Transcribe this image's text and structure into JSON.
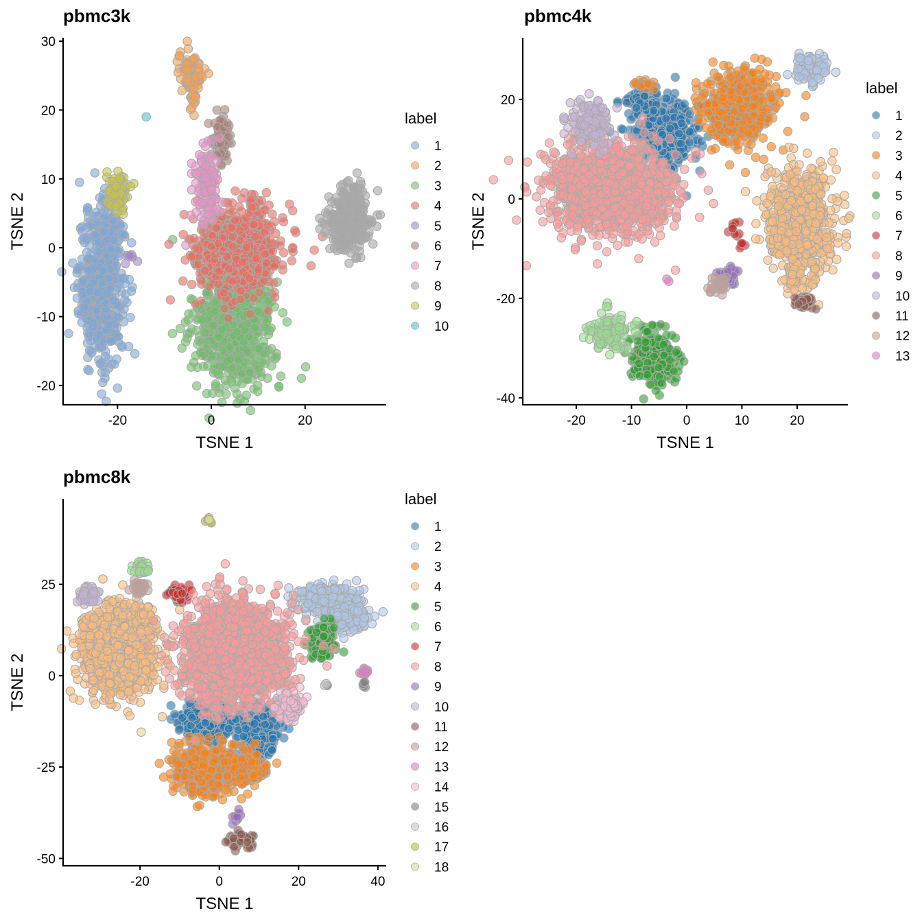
{
  "chart_data": [
    {
      "type": "scatter",
      "title": "pbmc3k",
      "xlabel": "TSNE 1",
      "ylabel": "TSNE 2",
      "xlim": [
        -31.6,
        37.3
      ],
      "ylim": [
        -22.8,
        30.5
      ],
      "xticks": [
        -20,
        0,
        20
      ],
      "yticks": [
        -20,
        -10,
        0,
        10,
        20,
        30
      ],
      "grid": false,
      "legend": {
        "title": "label",
        "position": "right"
      },
      "series": [
        {
          "name": "1",
          "color": "#7aa6dc",
          "clusters": [
            {
              "cx": -23.5,
              "cy": -5.5,
              "sx": 2.4,
              "sy": 5.5,
              "n": 520
            },
            {
              "cx": -22,
              "cy": 3,
              "sx": 1.5,
              "sy": 2,
              "n": 60
            }
          ]
        },
        {
          "name": "2",
          "color": "#f6a04d",
          "clusters": [
            {
              "cx": -4.3,
              "cy": 25.5,
              "sx": 1.4,
              "sy": 1.6,
              "n": 70
            },
            {
              "cx": -3.9,
              "cy": 21.5,
              "sx": 0.5,
              "sy": 1.1,
              "n": 14
            }
          ]
        },
        {
          "name": "3",
          "color": "#6abf63",
          "clusters": [
            {
              "cx": 5,
              "cy": -11,
              "sx": 4.2,
              "sy": 4.6,
              "n": 780
            }
          ]
        },
        {
          "name": "4",
          "color": "#ec6a5e",
          "clusters": [
            {
              "cx": 5.5,
              "cy": -0.5,
              "sx": 4.8,
              "sy": 3.0,
              "n": 620
            },
            {
              "cx": 9,
              "cy": 5.5,
              "sx": 1.3,
              "sy": 1.5,
              "n": 30
            }
          ]
        },
        {
          "name": "5",
          "color": "#a584d0",
          "clusters": [
            {
              "cx": -17.3,
              "cy": -1.3,
              "sx": 0.5,
              "sy": 0.5,
              "n": 8
            }
          ]
        },
        {
          "name": "6",
          "color": "#a87e76",
          "clusters": [
            {
              "cx": 2.3,
              "cy": 16.2,
              "sx": 1.0,
              "sy": 2.0,
              "n": 80
            }
          ]
        },
        {
          "name": "7",
          "color": "#ec8fca",
          "clusters": [
            {
              "cx": -1,
              "cy": 9,
              "sx": 1.4,
              "sy": 2.8,
              "n": 120
            }
          ]
        },
        {
          "name": "8",
          "color": "#a6a6a6",
          "clusters": [
            {
              "cx": 29.5,
              "cy": 4,
              "sx": 2.4,
              "sy": 2.4,
              "n": 320
            }
          ]
        },
        {
          "name": "9",
          "color": "#c7c442",
          "clusters": [
            {
              "cx": -20,
              "cy": 8,
              "sx": 1.2,
              "sy": 1.5,
              "n": 90
            }
          ]
        },
        {
          "name": "10",
          "color": "#51c1d1",
          "clusters": [
            {
              "cx": -14,
              "cy": 19,
              "sx": 0.05,
              "sy": 0.05,
              "n": 1
            }
          ]
        }
      ]
    },
    {
      "type": "scatter",
      "title": "pbmc4k",
      "xlabel": "TSNE 1",
      "ylabel": "TSNE 2",
      "xlim": [
        -29.7,
        29.2
      ],
      "ylim": [
        -41.4,
        32.4
      ],
      "xticks": [
        -20,
        -10,
        0,
        10,
        20
      ],
      "yticks": [
        -40,
        -20,
        0,
        20
      ],
      "grid": false,
      "legend": {
        "title": "label",
        "position": "right"
      },
      "series": [
        {
          "name": "1",
          "color": "#1f77b4",
          "clusters": [
            {
              "cx": -4,
              "cy": 13,
              "sx": 3.2,
              "sy": 3.5,
              "n": 350
            },
            {
              "cx": -8,
              "cy": 19.5,
              "sx": 1.8,
              "sy": 1.2,
              "n": 60
            }
          ]
        },
        {
          "name": "2",
          "color": "#aec7e8",
          "clusters": [
            {
              "cx": 22.5,
              "cy": 26,
              "sx": 1.5,
              "sy": 1.5,
              "n": 110
            }
          ]
        },
        {
          "name": "3",
          "color": "#ff7f0e",
          "clusters": [
            {
              "cx": 9.5,
              "cy": 18.5,
              "sx": 3.2,
              "sy": 3.6,
              "n": 480
            },
            {
              "cx": -8,
              "cy": 23,
              "sx": 1.0,
              "sy": 0.6,
              "n": 22
            }
          ]
        },
        {
          "name": "4",
          "color": "#ffbb78",
          "clusters": [
            {
              "cx": 20.5,
              "cy": -5,
              "sx": 3.0,
              "sy": 5.5,
              "n": 760
            },
            {
              "cx": 19.5,
              "cy": -15.5,
              "sx": 0.7,
              "sy": 1.8,
              "n": 40
            }
          ]
        },
        {
          "name": "5",
          "color": "#2ca02c",
          "clusters": [
            {
              "cx": -6,
              "cy": -32,
              "sx": 2.0,
              "sy": 2.8,
              "n": 230
            }
          ]
        },
        {
          "name": "6",
          "color": "#98df8a",
          "clusters": [
            {
              "cx": -13.5,
              "cy": -27,
              "sx": 2.0,
              "sy": 2.0,
              "n": 130
            }
          ]
        },
        {
          "name": "7",
          "color": "#d62728",
          "clusters": [
            {
              "cx": 8.5,
              "cy": -6,
              "sx": 0.7,
              "sy": 1.0,
              "n": 10
            },
            {
              "cx": 10,
              "cy": -9,
              "sx": 0.5,
              "sy": 0.5,
              "n": 6
            }
          ]
        },
        {
          "name": "8",
          "color": "#ff9896",
          "clusters": [
            {
              "cx": -14,
              "cy": 2,
              "sx": 5.3,
              "sy": 4.2,
              "n": 1500
            }
          ]
        },
        {
          "name": "9",
          "color": "#9467bd",
          "clusters": [
            {
              "cx": 7.5,
              "cy": -15.5,
              "sx": 1.2,
              "sy": 1.0,
              "n": 40
            }
          ]
        },
        {
          "name": "10",
          "color": "#c5b0d5",
          "clusters": [
            {
              "cx": -17.5,
              "cy": 15.5,
              "sx": 2.0,
              "sy": 2.0,
              "n": 150
            }
          ]
        },
        {
          "name": "11",
          "color": "#8c564b",
          "clusters": [
            {
              "cx": 21,
              "cy": -20.7,
              "sx": 0.9,
              "sy": 0.8,
              "n": 45
            }
          ]
        },
        {
          "name": "12",
          "color": "#c49c94",
          "clusters": [
            {
              "cx": 5.8,
              "cy": -17.5,
              "sx": 0.9,
              "sy": 0.8,
              "n": 25
            }
          ]
        },
        {
          "name": "13",
          "color": "#e377c2",
          "clusters": [
            {
              "cx": -3.2,
              "cy": -16.5,
              "sx": 0.2,
              "sy": 0.2,
              "n": 2
            }
          ]
        }
      ]
    },
    {
      "type": "scatter",
      "title": "pbmc8k",
      "xlabel": "TSNE 1",
      "ylabel": "TSNE 2",
      "xlim": [
        -39.4,
        42.1
      ],
      "ylim": [
        -52,
        48.4
      ],
      "xticks": [
        -20,
        0,
        20,
        40
      ],
      "yticks": [
        -50,
        -25,
        0,
        25
      ],
      "grid": false,
      "legend": {
        "title": "label",
        "position": "right"
      },
      "series": [
        {
          "name": "1",
          "color": "#1f77b4",
          "clusters": [
            {
              "cx": -2.5,
              "cy": -12,
              "sx": 3.6,
              "sy": 2.8,
              "n": 340
            },
            {
              "cx": 10,
              "cy": -15,
              "sx": 2.6,
              "sy": 3.4,
              "n": 220
            }
          ]
        },
        {
          "name": "2",
          "color": "#aec7e8",
          "clusters": [
            {
              "cx": 27,
              "cy": 20.5,
              "sx": 3.4,
              "sy": 2.0,
              "n": 340
            },
            {
              "cx": 33,
              "cy": 16,
              "sx": 2.5,
              "sy": 2.0,
              "n": 180
            }
          ]
        },
        {
          "name": "3",
          "color": "#ff7f0e",
          "clusters": [
            {
              "cx": -4.5,
              "cy": -26,
              "sx": 3.4,
              "sy": 3.8,
              "n": 380
            },
            {
              "cx": 5.5,
              "cy": -25.5,
              "sx": 3.2,
              "sy": 2.4,
              "n": 210
            }
          ]
        },
        {
          "name": "4",
          "color": "#ffbb78",
          "clusters": [
            {
              "cx": -26,
              "cy": 7,
              "sx": 4.6,
              "sy": 5.8,
              "n": 1100
            },
            {
              "cx": -19.5,
              "cy": 15,
              "sx": 2.2,
              "sy": 2.0,
              "n": 80
            }
          ]
        },
        {
          "name": "5",
          "color": "#2ca02c",
          "clusters": [
            {
              "cx": 26.2,
              "cy": 9.5,
              "sx": 1.6,
              "sy": 2.4,
              "n": 130
            }
          ]
        },
        {
          "name": "6",
          "color": "#98df8a",
          "clusters": [
            {
              "cx": -19.5,
              "cy": 29.5,
              "sx": 1.2,
              "sy": 1.0,
              "n": 40
            }
          ]
        },
        {
          "name": "7",
          "color": "#d62728",
          "clusters": [
            {
              "cx": -10,
              "cy": 22,
              "sx": 1.4,
              "sy": 1.1,
              "n": 55
            }
          ]
        },
        {
          "name": "8",
          "color": "#ff9896",
          "clusters": [
            {
              "cx": 4,
              "cy": 6,
              "sx": 6.0,
              "sy": 6.6,
              "n": 2000
            }
          ]
        },
        {
          "name": "9",
          "color": "#9467bd",
          "clusters": [
            {
              "cx": 4.5,
              "cy": -38,
              "sx": 0.6,
              "sy": 1.6,
              "n": 9
            }
          ]
        },
        {
          "name": "10",
          "color": "#c5b0d5",
          "clusters": [
            {
              "cx": -33,
              "cy": 22,
              "sx": 1.4,
              "sy": 1.2,
              "n": 55
            }
          ]
        },
        {
          "name": "11",
          "color": "#8c564b",
          "clusters": [
            {
              "cx": 5.5,
              "cy": -45,
              "sx": 1.5,
              "sy": 1.0,
              "n": 60
            }
          ]
        },
        {
          "name": "12",
          "color": "#c49c94",
          "clusters": [
            {
              "cx": -20.5,
              "cy": 24,
              "sx": 1.0,
              "sy": 1.1,
              "n": 28
            }
          ]
        },
        {
          "name": "13",
          "color": "#e377c2",
          "clusters": [
            {
              "cx": 36.5,
              "cy": 0.8,
              "sx": 0.6,
              "sy": 0.7,
              "n": 14
            }
          ]
        },
        {
          "name": "14",
          "color": "#f7b6d2",
          "clusters": [
            {
              "cx": 17.5,
              "cy": -8.5,
              "sx": 1.7,
              "sy": 2.0,
              "n": 120
            }
          ]
        },
        {
          "name": "15",
          "color": "#7f7f7f",
          "clusters": [
            {
              "cx": 36.5,
              "cy": -2.5,
              "sx": 0.3,
              "sy": 0.5,
              "n": 5
            },
            {
              "cx": 27.5,
              "cy": -2.5,
              "sx": 0.2,
              "sy": 0.2,
              "n": 2
            }
          ]
        },
        {
          "name": "16",
          "color": "#c7c7c7",
          "clusters": [
            {
              "cx": 27,
              "cy": -2.5,
              "sx": 0.3,
              "sy": 0.3,
              "n": 2
            }
          ]
        },
        {
          "name": "17",
          "color": "#bcbd22",
          "clusters": [
            {
              "cx": -2.5,
              "cy": 42.5,
              "sx": 0.4,
              "sy": 0.4,
              "n": 6
            }
          ]
        },
        {
          "name": "18",
          "color": "#dbdb8d",
          "clusters": [
            {
              "cx": -19.5,
              "cy": -15.5,
              "sx": 0.1,
              "sy": 0.1,
              "n": 1
            },
            {
              "cx": -2.7,
              "cy": 43,
              "sx": 0.3,
              "sy": 0.3,
              "n": 3
            }
          ]
        }
      ]
    }
  ]
}
